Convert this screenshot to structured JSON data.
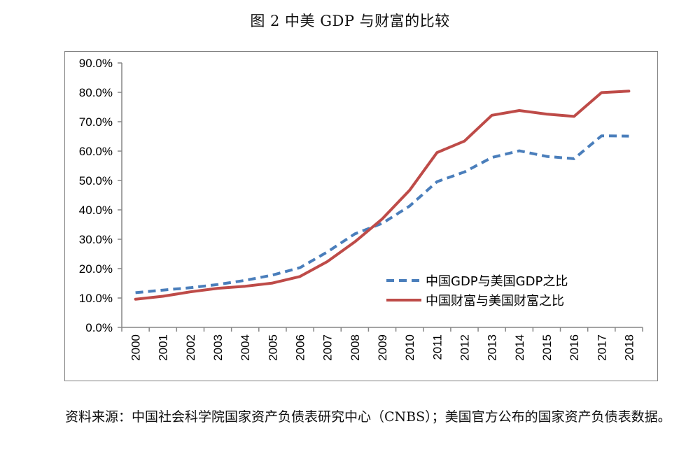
{
  "title": "图 2 中美 GDP 与财富的比较",
  "chart_data": {
    "type": "line",
    "title": "",
    "xlabel": "",
    "ylabel": "",
    "x": [
      "2000",
      "2001",
      "2002",
      "2003",
      "2004",
      "2005",
      "2006",
      "2007",
      "2008",
      "2009",
      "2010",
      "2011",
      "2012",
      "2013",
      "2014",
      "2015",
      "2016",
      "2017",
      "2018"
    ],
    "y_ticks": [
      "0.0%",
      "10.0%",
      "20.0%",
      "30.0%",
      "40.0%",
      "50.0%",
      "60.0%",
      "70.0%",
      "80.0%",
      "90.0%"
    ],
    "ylim": [
      0,
      90
    ],
    "grid": false,
    "legend_position": "lower-right",
    "series": [
      {
        "name": "中国GDP与美国GDP之比",
        "style": "dashed",
        "color": "#4a7ebb",
        "values": [
          11.8,
          12.7,
          13.5,
          14.6,
          16.0,
          17.8,
          20.3,
          25.7,
          31.8,
          35.4,
          41.3,
          49.6,
          52.9,
          57.8,
          60.1,
          58.2,
          57.4,
          65.2,
          65.1
        ]
      },
      {
        "name": "中国财富与美国财富之比",
        "style": "solid",
        "color": "#be4b48",
        "values": [
          9.6,
          10.6,
          12.1,
          13.3,
          14.0,
          15.1,
          17.3,
          22.4,
          29.1,
          36.9,
          46.7,
          59.5,
          63.4,
          72.2,
          73.8,
          72.6,
          71.8,
          79.9,
          80.4
        ]
      }
    ]
  },
  "source_text": "资料来源：中国社会科学院国家资产负债表研究中心（CNBS）；美国官方公布的国家资产负债表数据。"
}
